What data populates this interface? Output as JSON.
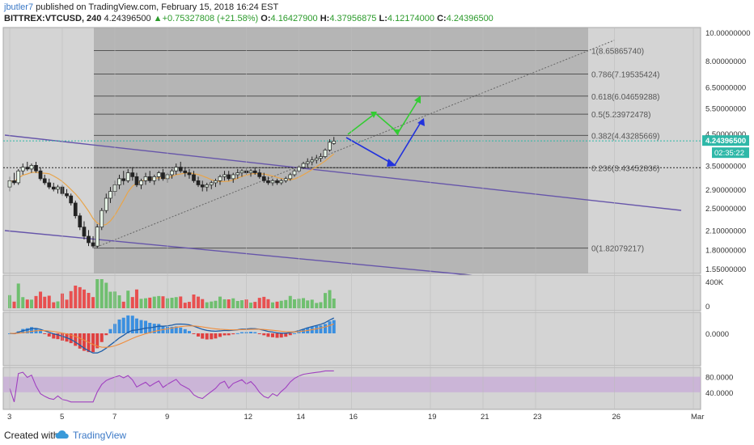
{
  "header": {
    "user": "jbutler7",
    "published": " published on TradingView.com, February 15, 2018 16:24 EST",
    "symbol": "BITTREX:VTCUSD, 240",
    "last": "4.24396500",
    "change": "+0.75327808 (+21.58%)",
    "o_label": "O:",
    "o_value": "4.16427900",
    "h_label": "H:",
    "h_value": "4.37956875",
    "l_label": "L:",
    "l_value": "4.12174000",
    "c_label": "C:",
    "c_value": "4.24396500"
  },
  "footer": {
    "created_with": "Created with",
    "brand": "TradingView"
  },
  "colors": {
    "bull": "#6fbf6f",
    "bear": "#e85050",
    "ma": "#e8a54b",
    "trend": "#6655aa",
    "arrow_blue": "#2233dd",
    "arrow_green": "#33cc33",
    "macd_line": "#1f5ea8",
    "signal_line": "#f08c3a",
    "rsi": "#a040c0",
    "price_badge": "#2eb8a8"
  },
  "chart_data": {
    "type": "candlestick",
    "symbol": "BITTREX:VTCUSD",
    "timeframe": "240",
    "y_axis": {
      "scale": "log",
      "ylim": [
        1.5,
        10.0
      ],
      "ticks": [
        "10.00000000",
        "8.00000000",
        "6.50000000",
        "5.50000000",
        "4.50000000",
        "3.50000000",
        "2.90000000",
        "2.50000000",
        "2.10000000",
        "1.80000000",
        "1.55000000"
      ]
    },
    "x_axis": {
      "ticks": [
        "3",
        "5",
        "7",
        "9",
        "12",
        "14",
        "16",
        "19",
        "21",
        "23",
        "26",
        "Mar"
      ],
      "tick_days": [
        3,
        5,
        7,
        9,
        12,
        14,
        16,
        19,
        21,
        23,
        26,
        29
      ]
    },
    "last_price": "4.24396500",
    "countdown": "02:35:22",
    "fib_levels": [
      {
        "ratio": "1",
        "price": "8.65865740",
        "value": 8.6586574
      },
      {
        "ratio": "0.786",
        "price": "7.19535424",
        "value": 7.19535424
      },
      {
        "ratio": "0.618",
        "price": "6.04659288",
        "value": 6.04659288
      },
      {
        "ratio": "0.5",
        "price": "5.23972478",
        "value": 5.23972478
      },
      {
        "ratio": "0.382",
        "price": "4.43285669",
        "value": 4.43285669
      },
      {
        "ratio": "0.236",
        "price": "3.43452836",
        "value": 3.43452836
      },
      {
        "ratio": "0",
        "price": "1.82079217",
        "value": 1.82079217
      }
    ],
    "fib_day_range": [
      6.2,
      25
    ],
    "candles": [
      {
        "d": 3.0,
        "o": 2.95,
        "h": 3.2,
        "l": 2.85,
        "c": 3.1
      },
      {
        "d": 3.17,
        "o": 3.1,
        "h": 3.3,
        "l": 3.0,
        "c": 3.05
      },
      {
        "d": 3.33,
        "o": 3.05,
        "h": 3.4,
        "l": 3.0,
        "c": 3.35
      },
      {
        "d": 3.5,
        "o": 3.35,
        "h": 3.55,
        "l": 3.25,
        "c": 3.45
      },
      {
        "d": 3.67,
        "o": 3.45,
        "h": 3.6,
        "l": 3.35,
        "c": 3.4
      },
      {
        "d": 3.83,
        "o": 3.4,
        "h": 3.55,
        "l": 3.3,
        "c": 3.5
      },
      {
        "d": 4.0,
        "o": 3.5,
        "h": 3.6,
        "l": 3.3,
        "c": 3.35
      },
      {
        "d": 4.17,
        "o": 3.35,
        "h": 3.45,
        "l": 3.1,
        "c": 3.15
      },
      {
        "d": 4.33,
        "o": 3.15,
        "h": 3.25,
        "l": 3.0,
        "c": 3.05
      },
      {
        "d": 4.5,
        "o": 3.05,
        "h": 3.15,
        "l": 2.9,
        "c": 2.95
      },
      {
        "d": 4.67,
        "o": 2.95,
        "h": 3.05,
        "l": 2.85,
        "c": 2.9
      },
      {
        "d": 4.83,
        "o": 2.9,
        "h": 3.0,
        "l": 2.8,
        "c": 2.95
      },
      {
        "d": 5.0,
        "o": 2.95,
        "h": 3.0,
        "l": 2.75,
        "c": 2.8
      },
      {
        "d": 5.17,
        "o": 2.8,
        "h": 2.9,
        "l": 2.7,
        "c": 2.75
      },
      {
        "d": 5.33,
        "o": 2.75,
        "h": 2.8,
        "l": 2.55,
        "c": 2.6
      },
      {
        "d": 5.5,
        "o": 2.6,
        "h": 2.65,
        "l": 2.3,
        "c": 2.35
      },
      {
        "d": 5.67,
        "o": 2.35,
        "h": 2.4,
        "l": 2.1,
        "c": 2.15
      },
      {
        "d": 5.83,
        "o": 2.15,
        "h": 2.25,
        "l": 1.95,
        "c": 2.0
      },
      {
        "d": 6.0,
        "o": 2.0,
        "h": 2.1,
        "l": 1.85,
        "c": 1.9
      },
      {
        "d": 6.17,
        "o": 1.9,
        "h": 2.0,
        "l": 1.82,
        "c": 1.85
      },
      {
        "d": 6.33,
        "o": 1.85,
        "h": 2.2,
        "l": 1.82,
        "c": 2.15
      },
      {
        "d": 6.5,
        "o": 2.15,
        "h": 2.5,
        "l": 2.1,
        "c": 2.45
      },
      {
        "d": 6.67,
        "o": 2.45,
        "h": 2.8,
        "l": 2.4,
        "c": 2.7
      },
      {
        "d": 6.83,
        "o": 2.7,
        "h": 2.95,
        "l": 2.6,
        "c": 2.85
      },
      {
        "d": 7.0,
        "o": 2.85,
        "h": 3.1,
        "l": 2.75,
        "c": 3.0
      },
      {
        "d": 7.17,
        "o": 3.0,
        "h": 3.25,
        "l": 2.9,
        "c": 3.15
      },
      {
        "d": 7.33,
        "o": 3.15,
        "h": 3.35,
        "l": 3.0,
        "c": 3.1
      },
      {
        "d": 7.5,
        "o": 3.1,
        "h": 3.4,
        "l": 3.05,
        "c": 3.3
      },
      {
        "d": 7.67,
        "o": 3.3,
        "h": 3.45,
        "l": 3.1,
        "c": 3.2
      },
      {
        "d": 7.83,
        "o": 3.2,
        "h": 3.3,
        "l": 2.95,
        "c": 3.0
      },
      {
        "d": 8.0,
        "o": 3.0,
        "h": 3.15,
        "l": 2.9,
        "c": 3.1
      },
      {
        "d": 8.17,
        "o": 3.1,
        "h": 3.3,
        "l": 3.0,
        "c": 3.2
      },
      {
        "d": 8.33,
        "o": 3.2,
        "h": 3.35,
        "l": 3.05,
        "c": 3.1
      },
      {
        "d": 8.5,
        "o": 3.1,
        "h": 3.25,
        "l": 3.0,
        "c": 3.2
      },
      {
        "d": 8.67,
        "o": 3.2,
        "h": 3.35,
        "l": 3.1,
        "c": 3.3
      },
      {
        "d": 8.83,
        "o": 3.3,
        "h": 3.4,
        "l": 3.1,
        "c": 3.15
      },
      {
        "d": 9.0,
        "o": 3.15,
        "h": 3.3,
        "l": 3.05,
        "c": 3.25
      },
      {
        "d": 9.17,
        "o": 3.25,
        "h": 3.4,
        "l": 3.15,
        "c": 3.35
      },
      {
        "d": 9.33,
        "o": 3.35,
        "h": 3.55,
        "l": 3.25,
        "c": 3.45
      },
      {
        "d": 9.5,
        "o": 3.45,
        "h": 3.6,
        "l": 3.3,
        "c": 3.35
      },
      {
        "d": 9.67,
        "o": 3.35,
        "h": 3.45,
        "l": 3.2,
        "c": 3.3
      },
      {
        "d": 9.83,
        "o": 3.3,
        "h": 3.4,
        "l": 3.15,
        "c": 3.25
      },
      {
        "d": 10.0,
        "o": 3.25,
        "h": 3.35,
        "l": 3.05,
        "c": 3.1
      },
      {
        "d": 10.17,
        "o": 3.1,
        "h": 3.2,
        "l": 2.95,
        "c": 3.0
      },
      {
        "d": 10.33,
        "o": 3.0,
        "h": 3.1,
        "l": 2.85,
        "c": 2.95
      },
      {
        "d": 10.5,
        "o": 2.95,
        "h": 3.05,
        "l": 2.85,
        "c": 3.0
      },
      {
        "d": 10.67,
        "o": 3.0,
        "h": 3.1,
        "l": 2.9,
        "c": 3.05
      },
      {
        "d": 10.83,
        "o": 3.05,
        "h": 3.15,
        "l": 2.95,
        "c": 3.1
      },
      {
        "d": 11.0,
        "o": 3.1,
        "h": 3.25,
        "l": 3.0,
        "c": 3.2
      },
      {
        "d": 11.17,
        "o": 3.2,
        "h": 3.35,
        "l": 3.1,
        "c": 3.25
      },
      {
        "d": 11.33,
        "o": 3.25,
        "h": 3.35,
        "l": 3.1,
        "c": 3.15
      },
      {
        "d": 11.5,
        "o": 3.15,
        "h": 3.3,
        "l": 3.05,
        "c": 3.25
      },
      {
        "d": 11.67,
        "o": 3.25,
        "h": 3.4,
        "l": 3.15,
        "c": 3.3
      },
      {
        "d": 11.83,
        "o": 3.3,
        "h": 3.4,
        "l": 3.2,
        "c": 3.35
      },
      {
        "d": 12.0,
        "o": 3.35,
        "h": 3.45,
        "l": 3.25,
        "c": 3.3
      },
      {
        "d": 12.17,
        "o": 3.3,
        "h": 3.4,
        "l": 3.2,
        "c": 3.35
      },
      {
        "d": 12.33,
        "o": 3.35,
        "h": 3.45,
        "l": 3.25,
        "c": 3.3
      },
      {
        "d": 12.5,
        "o": 3.3,
        "h": 3.4,
        "l": 3.15,
        "c": 3.2
      },
      {
        "d": 12.67,
        "o": 3.2,
        "h": 3.3,
        "l": 3.05,
        "c": 3.1
      },
      {
        "d": 12.83,
        "o": 3.1,
        "h": 3.2,
        "l": 3.0,
        "c": 3.05
      },
      {
        "d": 13.0,
        "o": 3.05,
        "h": 3.15,
        "l": 2.98,
        "c": 3.1
      },
      {
        "d": 13.17,
        "o": 3.1,
        "h": 3.15,
        "l": 3.0,
        "c": 3.05
      },
      {
        "d": 13.33,
        "o": 3.05,
        "h": 3.15,
        "l": 3.0,
        "c": 3.1
      },
      {
        "d": 13.5,
        "o": 3.1,
        "h": 3.2,
        "l": 3.05,
        "c": 3.15
      },
      {
        "d": 13.67,
        "o": 3.15,
        "h": 3.3,
        "l": 3.1,
        "c": 3.25
      },
      {
        "d": 13.83,
        "o": 3.25,
        "h": 3.4,
        "l": 3.2,
        "c": 3.35
      },
      {
        "d": 14.0,
        "o": 3.35,
        "h": 3.5,
        "l": 3.3,
        "c": 3.45
      },
      {
        "d": 14.17,
        "o": 3.45,
        "h": 3.6,
        "l": 3.4,
        "c": 3.55
      },
      {
        "d": 14.33,
        "o": 3.55,
        "h": 3.7,
        "l": 3.45,
        "c": 3.6
      },
      {
        "d": 14.5,
        "o": 3.6,
        "h": 3.75,
        "l": 3.5,
        "c": 3.65
      },
      {
        "d": 14.67,
        "o": 3.65,
        "h": 3.8,
        "l": 3.55,
        "c": 3.7
      },
      {
        "d": 14.83,
        "o": 3.7,
        "h": 3.85,
        "l": 3.6,
        "c": 3.75
      },
      {
        "d": 15.0,
        "o": 3.75,
        "h": 4.0,
        "l": 3.7,
        "c": 3.95
      },
      {
        "d": 15.17,
        "o": 3.95,
        "h": 4.3,
        "l": 3.9,
        "c": 4.2
      },
      {
        "d": 15.33,
        "o": 4.16,
        "h": 4.38,
        "l": 4.12,
        "c": 4.24
      }
    ],
    "volume_axis": {
      "ticks": [
        "400K",
        "0"
      ]
    },
    "macd_axis": {
      "ticks": [
        "0.0000"
      ]
    },
    "rsi_axis": {
      "ticks": [
        "80.0000",
        "40.0000"
      ],
      "band": [
        40,
        80
      ]
    }
  }
}
